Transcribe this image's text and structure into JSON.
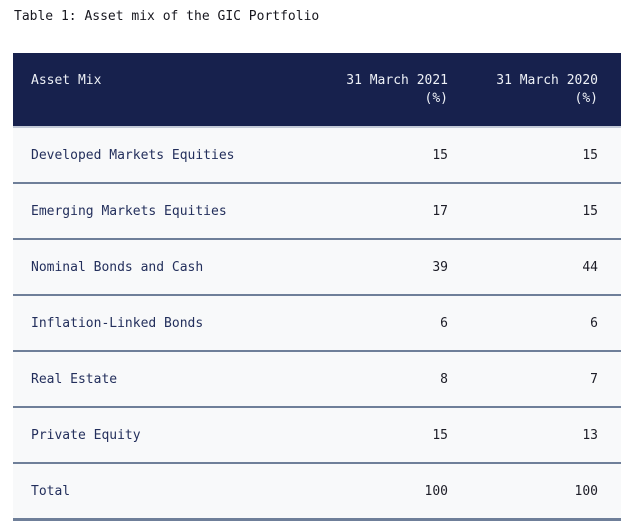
{
  "page": {
    "title": "Table 1: Asset mix of the GIC Portfolio"
  },
  "table": {
    "caption": "Asset mix of the GIC Portfolio",
    "columns": [
      {
        "label": "Asset Mix"
      },
      {
        "label": "31 March 2021",
        "unit": "(%)"
      },
      {
        "label": "31 March 2020",
        "unit": "(%)"
      }
    ],
    "rows": [
      {
        "label": "Developed Markets Equities",
        "y2021": "15",
        "y2020": "15"
      },
      {
        "label": "Emerging Markets Equities",
        "y2021": "17",
        "y2020": "15"
      },
      {
        "label": "Nominal Bonds and Cash",
        "y2021": "39",
        "y2020": "44"
      },
      {
        "label": "Inflation-Linked Bonds",
        "y2021": "6",
        "y2020": "6"
      },
      {
        "label": "Real Estate",
        "y2021": "8",
        "y2020": "7"
      },
      {
        "label": "Private Equity",
        "y2021": "15",
        "y2020": "13"
      },
      {
        "label": "Total",
        "y2021": "100",
        "y2020": "100"
      }
    ]
  },
  "colors": {
    "header_bg": "#17214d",
    "header_text": "#edf0f6",
    "row_bg": "#f8f9fa",
    "divider": "#6f7f99",
    "label_text": "#232f5c",
    "value_text": "#1d1d27",
    "title_text": "#17171f"
  }
}
